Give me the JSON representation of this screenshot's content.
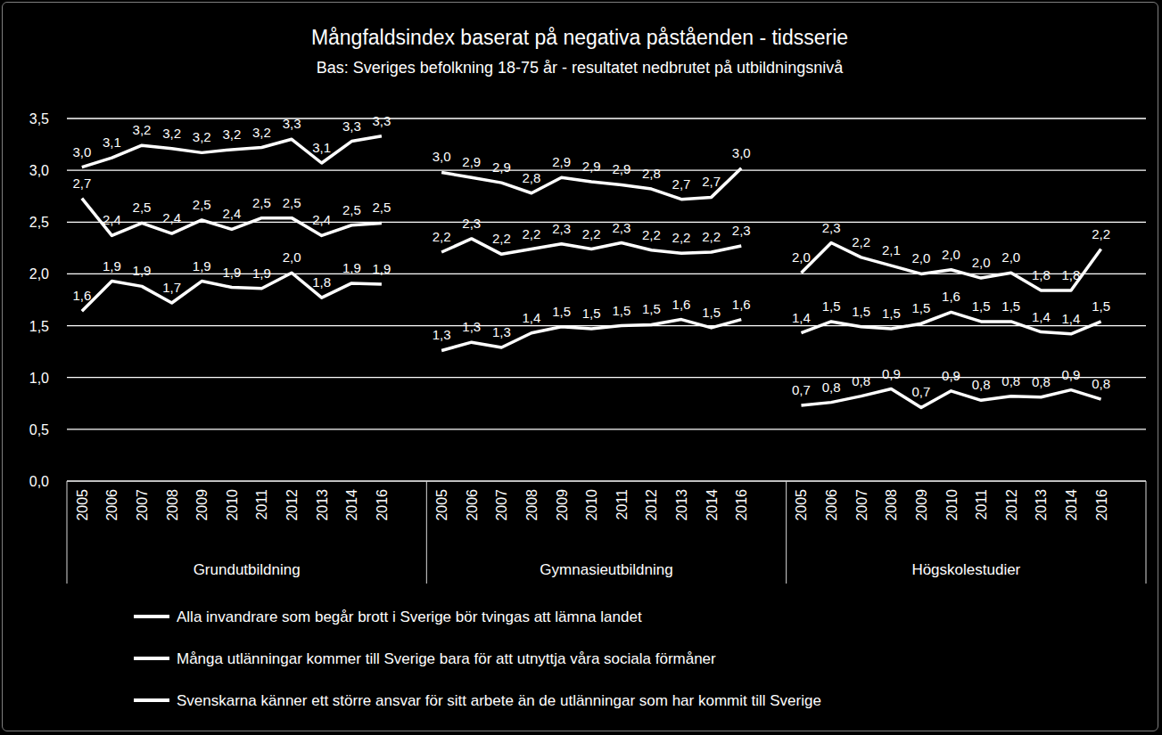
{
  "chart_data": {
    "type": "line",
    "title": "Mångfaldsindex baserat på negativa påståenden - tidsserie",
    "subtitle": "Bas: Sveriges befolkning 18-75 år - resultatet nedbrutet på utbildningsnivå",
    "ylim": [
      0,
      3.5
    ],
    "yticks": [
      {
        "value": 0,
        "label": "0,0"
      },
      {
        "value": 0.5,
        "label": "0,5"
      },
      {
        "value": 1,
        "label": "1,0"
      },
      {
        "value": 1.5,
        "label": "1,5"
      },
      {
        "value": 2,
        "label": "2,0"
      },
      {
        "value": 2.5,
        "label": "2,5"
      },
      {
        "value": 3,
        "label": "3,0"
      },
      {
        "value": 3.5,
        "label": "3,5"
      }
    ],
    "grid": true,
    "data_labels": true,
    "legend": "bottom",
    "series": [
      {
        "name": "Alla invandrare som begår brott i Sverige bör tvingas att lämna landet",
        "color": "#ffffff",
        "line_style": "solid"
      },
      {
        "name": "Många utlänningar kommer till Sverige bara för att utnyttja våra sociala förmåner",
        "color": "#ffffff",
        "line_style": "solid"
      },
      {
        "name": "Svenskarna känner ett större ansvar för sitt arbete än de utlänningar som har kommit till Sverige",
        "color": "#ffffff",
        "line_style": "solid"
      }
    ],
    "panels": [
      {
        "label": "Grundutbildning",
        "categories": [
          "2005",
          "2006",
          "2007",
          "2008",
          "2009",
          "2010",
          "2011",
          "2012",
          "2013",
          "2014",
          "2016"
        ],
        "series": [
          {
            "values": [
              3.03,
              3.12,
              3.24,
              3.21,
              3.17,
              3.2,
              3.22,
              3.3,
              3.07,
              3.28,
              3.33
            ],
            "value_labels": [
              "3,0",
              "3,1",
              "3,2",
              "3,2",
              "3,2",
              "3,2",
              "3,2",
              "3,3",
              "3,1",
              "3,3",
              "3,3"
            ]
          },
          {
            "values": [
              2.73,
              2.37,
              2.49,
              2.39,
              2.52,
              2.43,
              2.54,
              2.54,
              2.37,
              2.47,
              2.49
            ],
            "value_labels": [
              "2,7",
              "2,4",
              "2,5",
              "2,4",
              "2,5",
              "2,4",
              "2,5",
              "2,5",
              "2,4",
              "2,5",
              "2,5"
            ]
          },
          {
            "values": [
              1.64,
              1.93,
              1.88,
              1.72,
              1.93,
              1.87,
              1.86,
              2.01,
              1.77,
              1.91,
              1.9
            ],
            "value_labels": [
              "1,6",
              "1,9",
              "1,9",
              "1,7",
              "1,9",
              "1,9",
              "1,9",
              "2,0",
              "1,8",
              "1,9",
              "1,9"
            ]
          }
        ]
      },
      {
        "label": "Gymnasieutbildning",
        "categories": [
          "2005",
          "2006",
          "2007",
          "2008",
          "2009",
          "2010",
          "2011",
          "2012",
          "2013",
          "2014",
          "2016"
        ],
        "series": [
          {
            "values": [
              2.98,
              2.93,
              2.88,
              2.78,
              2.93,
              2.89,
              2.86,
              2.82,
              2.72,
              2.74,
              3.02
            ],
            "value_labels": [
              "3,0",
              "2,9",
              "2,9",
              "2,8",
              "2,9",
              "2,9",
              "2,9",
              "2,8",
              "2,7",
              "2,7",
              "3,0"
            ]
          },
          {
            "values": [
              2.21,
              2.34,
              2.19,
              2.24,
              2.29,
              2.24,
              2.3,
              2.23,
              2.2,
              2.21,
              2.27
            ],
            "value_labels": [
              "2,2",
              "2,3",
              "2,2",
              "2,2",
              "2,3",
              "2,2",
              "2,3",
              "2,2",
              "2,2",
              "2,2",
              "2,3"
            ]
          },
          {
            "values": [
              1.26,
              1.34,
              1.29,
              1.43,
              1.49,
              1.47,
              1.5,
              1.51,
              1.56,
              1.48,
              1.56
            ],
            "value_labels": [
              "1,3",
              "1,3",
              "1,3",
              "1,4",
              "1,5",
              "1,5",
              "1,5",
              "1,5",
              "1,6",
              "1,5",
              "1,6"
            ]
          }
        ]
      },
      {
        "label": "Högskolestudier",
        "categories": [
          "2005",
          "2006",
          "2007",
          "2008",
          "2009",
          "2010",
          "2011",
          "2012",
          "2013",
          "2014",
          "2016"
        ],
        "series": [
          {
            "values": [
              2.01,
              2.3,
              2.16,
              2.08,
              2.0,
              2.04,
              1.96,
              2.01,
              1.84,
              1.84,
              2.24
            ],
            "value_labels": [
              "2,0",
              "2,3",
              "2,2",
              "2,1",
              "2,0",
              "2,0",
              "2,0",
              "2,0",
              "1,8",
              "1,8",
              "2,2"
            ]
          },
          {
            "values": [
              1.43,
              1.54,
              1.49,
              1.47,
              1.52,
              1.63,
              1.54,
              1.54,
              1.44,
              1.42,
              1.54
            ],
            "value_labels": [
              "1,4",
              "1,5",
              "1,5",
              "1,5",
              "1,5",
              "1,6",
              "1,5",
              "1,5",
              "1,4",
              "1,4",
              "1,5"
            ]
          },
          {
            "values": [
              0.73,
              0.76,
              0.82,
              0.89,
              0.71,
              0.87,
              0.78,
              0.82,
              0.81,
              0.88,
              0.79
            ],
            "value_labels": [
              "0,7",
              "0,8",
              "0,8",
              "0,9",
              "0,7",
              "0,9",
              "0,8",
              "0,8",
              "0,8",
              "0,9",
              "0,8"
            ]
          }
        ]
      }
    ]
  }
}
